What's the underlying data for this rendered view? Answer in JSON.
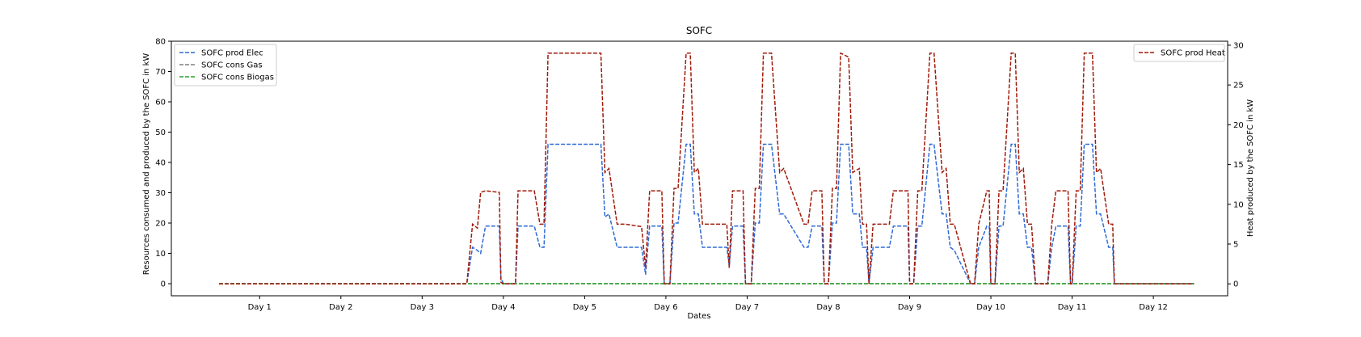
{
  "chart_data": {
    "type": "line",
    "title": "SOFC",
    "xlabel": "Dates",
    "ylabel_left": "Resources consumed and produced by the SOFC in kW",
    "ylabel_right": "Heat produced by the SOFC in kW",
    "x_tick_labels": [
      "Day 1",
      "Day 2",
      "Day 3",
      "Day 4",
      "Day 5",
      "Day 6",
      "Day 7",
      "Day 8",
      "Day 9",
      "Day 10",
      "Day 11",
      "Day 12"
    ],
    "x_tick_days": [
      1,
      2,
      3,
      4,
      5,
      6,
      7,
      8,
      9,
      10,
      11,
      12
    ],
    "x_range": [
      0.5,
      12.5
    ],
    "ylim_left": [
      -4,
      80
    ],
    "ylim_right": [
      -1.5,
      30.5
    ],
    "y_ticks_left": [
      0,
      10,
      20,
      30,
      40,
      50,
      60,
      70,
      80
    ],
    "y_ticks_right": [
      0,
      5,
      10,
      15,
      20,
      25,
      30
    ],
    "legend_left_placement": "upper-left",
    "legend_right_placement": "upper-right",
    "grid": false,
    "series": [
      {
        "name": "SOFC prod Elec",
        "axis": "left",
        "color": "#2f6ad6",
        "style": "dashed",
        "x": [
          0.5,
          3.55,
          3.62,
          3.68,
          3.72,
          3.78,
          3.95,
          3.97,
          4.0,
          4.15,
          4.18,
          4.38,
          4.45,
          4.5,
          4.55,
          5.2,
          5.25,
          5.3,
          5.4,
          5.45,
          5.5,
          5.7,
          5.75,
          5.8,
          5.95,
          5.98,
          6.05,
          6.1,
          6.15,
          6.25,
          6.3,
          6.35,
          6.4,
          6.45,
          6.55,
          6.75,
          6.78,
          6.82,
          6.95,
          6.98,
          7.05,
          7.1,
          7.15,
          7.2,
          7.3,
          7.4,
          7.45,
          7.7,
          7.75,
          7.8,
          7.92,
          7.95,
          8.0,
          8.05,
          8.1,
          8.15,
          8.25,
          8.3,
          8.38,
          8.42,
          8.47,
          8.5,
          8.55,
          8.75,
          8.8,
          8.85,
          8.98,
          9.0,
          9.05,
          9.1,
          9.15,
          9.25,
          9.3,
          9.4,
          9.45,
          9.5,
          9.55,
          9.75,
          9.8,
          9.85,
          9.95,
          9.98,
          10.0,
          10.05,
          10.1,
          10.15,
          10.25,
          10.3,
          10.35,
          10.4,
          10.45,
          10.5,
          10.55,
          10.7,
          10.75,
          10.8,
          10.95,
          10.98,
          11.0,
          11.05,
          11.1,
          11.15,
          11.25,
          11.3,
          11.35,
          11.45,
          11.5,
          11.52,
          11.55,
          12.5
        ],
        "values": [
          0,
          0,
          12,
          11,
          10,
          19,
          19,
          2,
          0,
          0,
          19,
          19,
          12,
          12,
          46,
          46,
          22,
          23,
          12,
          12,
          12,
          12,
          3,
          19,
          19,
          0,
          0,
          20,
          20,
          46,
          46,
          23,
          23,
          12,
          12,
          12,
          6,
          19,
          19,
          0,
          0,
          20,
          20,
          46,
          46,
          23,
          23,
          12,
          12,
          19,
          19,
          0,
          0,
          20,
          20,
          46,
          46,
          23,
          23,
          12,
          12,
          0,
          12,
          12,
          19,
          19,
          19,
          0,
          0,
          19,
          19,
          46,
          46,
          23,
          23,
          12,
          11,
          0,
          0,
          12,
          19,
          19,
          0,
          0,
          19,
          19,
          46,
          46,
          23,
          23,
          12,
          12,
          0,
          0,
          12,
          19,
          19,
          0,
          0,
          19,
          19,
          46,
          46,
          23,
          23,
          12,
          12,
          0,
          0,
          0
        ]
      },
      {
        "name": "SOFC cons Gas",
        "axis": "left",
        "color": "#7f7f7f",
        "style": "dashed",
        "x": [
          0.5,
          12.5
        ],
        "values": [
          0,
          0
        ]
      },
      {
        "name": "SOFC cons Biogas",
        "axis": "left",
        "color": "#2ca02c",
        "style": "dashed",
        "x": [
          0.5,
          12.5
        ],
        "values": [
          0,
          0
        ]
      },
      {
        "name": "SOFC prod Heat",
        "axis": "right",
        "color": "#a11a0a",
        "style": "dashed",
        "x": [
          0.5,
          3.55,
          3.62,
          3.68,
          3.72,
          3.78,
          3.95,
          3.97,
          4.0,
          4.15,
          4.18,
          4.38,
          4.45,
          4.5,
          4.55,
          5.2,
          5.25,
          5.3,
          5.4,
          5.45,
          5.5,
          5.7,
          5.75,
          5.8,
          5.95,
          5.98,
          6.05,
          6.1,
          6.15,
          6.25,
          6.3,
          6.35,
          6.4,
          6.45,
          6.55,
          6.75,
          6.78,
          6.82,
          6.95,
          6.98,
          7.05,
          7.1,
          7.15,
          7.2,
          7.3,
          7.4,
          7.45,
          7.7,
          7.75,
          7.8,
          7.92,
          7.95,
          8.0,
          8.05,
          8.1,
          8.15,
          8.25,
          8.3,
          8.38,
          8.42,
          8.47,
          8.5,
          8.55,
          8.75,
          8.8,
          8.85,
          8.98,
          9.0,
          9.05,
          9.1,
          9.15,
          9.25,
          9.3,
          9.4,
          9.45,
          9.5,
          9.55,
          9.75,
          9.8,
          9.85,
          9.95,
          9.98,
          10.0,
          10.05,
          10.1,
          10.15,
          10.25,
          10.3,
          10.35,
          10.4,
          10.45,
          10.5,
          10.55,
          10.7,
          10.75,
          10.8,
          10.95,
          10.98,
          11.0,
          11.05,
          11.1,
          11.15,
          11.25,
          11.3,
          11.35,
          11.45,
          11.5,
          11.52,
          11.55,
          12.5
        ],
        "values": [
          0,
          0,
          7.5,
          7,
          11.5,
          11.7,
          11.5,
          0.2,
          0,
          0,
          11.7,
          11.7,
          7.5,
          7.5,
          29,
          29,
          14,
          14.5,
          7.5,
          7.5,
          7.5,
          7.2,
          2,
          11.7,
          11.7,
          0,
          0,
          12,
          12,
          29,
          29,
          14,
          14.5,
          7.5,
          7.5,
          7.5,
          2,
          11.7,
          11.7,
          0,
          0,
          12,
          12,
          29,
          29,
          14,
          14.5,
          7.5,
          7.5,
          11.7,
          11.7,
          0,
          0,
          12,
          12,
          29,
          28.5,
          14,
          14.5,
          7.5,
          7.5,
          0,
          7.5,
          7.5,
          11.7,
          11.7,
          11.7,
          0,
          0,
          11.7,
          11.7,
          29,
          29,
          14,
          14.5,
          7.5,
          7.5,
          0,
          0,
          7.5,
          11.7,
          11.7,
          0,
          0,
          11.7,
          11.7,
          29,
          29,
          14,
          14.5,
          7.5,
          7.5,
          0,
          0,
          7.5,
          11.7,
          11.7,
          0,
          0,
          11.7,
          11.7,
          29,
          29,
          14,
          14.5,
          7.5,
          7.5,
          0,
          0,
          0
        ]
      }
    ]
  }
}
